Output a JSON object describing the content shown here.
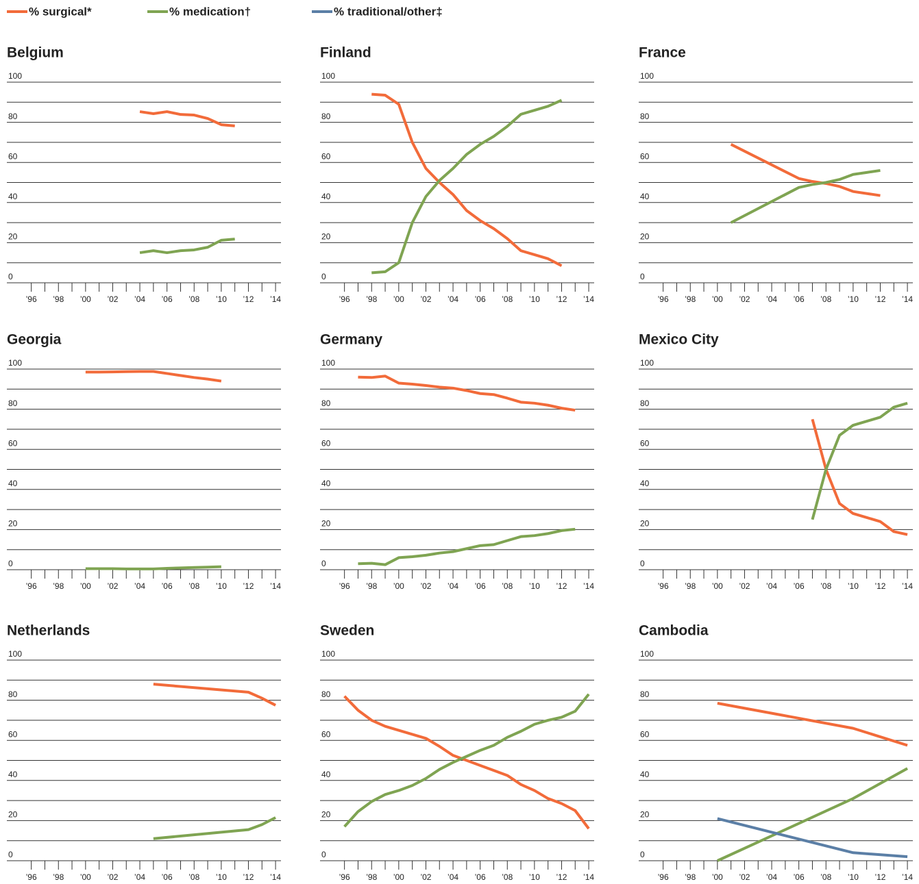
{
  "chart_data": [
    {
      "type": "line",
      "title": "Belgium",
      "x": [
        2004,
        2005,
        2006,
        2007,
        2008,
        2009,
        2010,
        2011
      ],
      "series": [
        {
          "name": "% surgical*",
          "color": "#f26b3a",
          "values": [
            85.3,
            84.3,
            85.3,
            83.9,
            83.6,
            81.9,
            78.8,
            78.2
          ]
        },
        {
          "name": "% medication†",
          "color": "#7fa452",
          "values": [
            15,
            16,
            15,
            16,
            16.4,
            17.7,
            21.2,
            21.8
          ]
        }
      ],
      "xlim": [
        1994.2,
        2014.4
      ],
      "ylim": [
        0,
        100
      ],
      "xticks": [
        {
          "value": 1996,
          "label": "’96"
        },
        {
          "value": 1998,
          "label": "’98"
        },
        {
          "value": 2000,
          "label": "’00"
        },
        {
          "value": 2002,
          "label": "’02"
        },
        {
          "value": 2004,
          "label": "’04"
        },
        {
          "value": 2006,
          "label": "’06"
        },
        {
          "value": 2008,
          "label": "’08"
        },
        {
          "value": 2010,
          "label": "’10"
        },
        {
          "value": 2012,
          "label": "’12"
        },
        {
          "value": 2014,
          "label": "’14"
        }
      ],
      "xminorticks": [
        1997,
        1999,
        2001,
        2003,
        2005,
        2007,
        2009,
        2011,
        2013
      ],
      "yticks": [
        0,
        20,
        40,
        60,
        80,
        100
      ],
      "yminorticks": [
        10,
        30,
        50,
        70,
        90
      ],
      "grid": true
    },
    {
      "type": "line",
      "title": "Finland",
      "x": [
        1998,
        1999,
        2000,
        2001,
        2002,
        2003,
        2004,
        2005,
        2006,
        2007,
        2008,
        2009,
        2010,
        2011,
        2012
      ],
      "series": [
        {
          "name": "% surgical*",
          "color": "#f26b3a",
          "values": [
            94,
            93.5,
            89,
            70,
            57,
            50,
            44,
            36,
            31,
            27,
            22,
            16,
            14,
            12,
            8.5
          ]
        },
        {
          "name": "% medication†",
          "color": "#7fa452",
          "values": [
            5,
            5.5,
            10,
            30,
            43,
            51,
            57,
            64,
            69,
            73,
            78,
            84,
            86,
            88,
            91
          ]
        }
      ],
      "xlim": [
        1994.2,
        2014.4
      ],
      "ylim": [
        0,
        100
      ],
      "xticks": [
        {
          "value": 1996,
          "label": "’96"
        },
        {
          "value": 1998,
          "label": "’98"
        },
        {
          "value": 2000,
          "label": "’00"
        },
        {
          "value": 2002,
          "label": "’02"
        },
        {
          "value": 2004,
          "label": "’04"
        },
        {
          "value": 2006,
          "label": "’06"
        },
        {
          "value": 2008,
          "label": "’08"
        },
        {
          "value": 2010,
          "label": "’10"
        },
        {
          "value": 2012,
          "label": "’12"
        },
        {
          "value": 2014,
          "label": "’14"
        }
      ],
      "xminorticks": [
        1997,
        1999,
        2001,
        2003,
        2005,
        2007,
        2009,
        2011,
        2013
      ],
      "yticks": [
        0,
        20,
        40,
        60,
        80,
        100
      ],
      "yminorticks": [
        10,
        30,
        50,
        70,
        90
      ],
      "grid": true
    },
    {
      "type": "line",
      "title": "France",
      "x": [
        2001,
        2006,
        2007,
        2008,
        2009,
        2010,
        2011,
        2012
      ],
      "series": [
        {
          "name": "% surgical*",
          "color": "#f26b3a",
          "values": [
            69,
            52,
            50.5,
            49.5,
            48,
            45.5,
            44.5,
            43.5
          ]
        },
        {
          "name": "% medication†",
          "color": "#7fa452",
          "values": [
            30,
            47.5,
            49,
            50,
            51.5,
            54,
            55,
            56
          ]
        }
      ],
      "xlim": [
        1994.2,
        2014.4
      ],
      "ylim": [
        0,
        100
      ],
      "xticks": [
        {
          "value": 1996,
          "label": "’96"
        },
        {
          "value": 1998,
          "label": "’98"
        },
        {
          "value": 2000,
          "label": "’00"
        },
        {
          "value": 2002,
          "label": "’02"
        },
        {
          "value": 2004,
          "label": "’04"
        },
        {
          "value": 2006,
          "label": "’06"
        },
        {
          "value": 2008,
          "label": "’08"
        },
        {
          "value": 2010,
          "label": "’10"
        },
        {
          "value": 2012,
          "label": "’12"
        },
        {
          "value": 2014,
          "label": "’14"
        }
      ],
      "xminorticks": [
        1997,
        1999,
        2001,
        2003,
        2005,
        2007,
        2009,
        2011,
        2013
      ],
      "yticks": [
        0,
        20,
        40,
        60,
        80,
        100
      ],
      "yminorticks": [
        10,
        30,
        50,
        70,
        90
      ],
      "grid": true
    },
    {
      "type": "line",
      "title": "Georgia",
      "x": [
        2000,
        2001,
        2002,
        2003,
        2004,
        2005,
        2006,
        2007,
        2008,
        2009,
        2010
      ],
      "series": [
        {
          "name": "% surgical*",
          "color": "#f26b3a",
          "values": [
            98.5,
            98.5,
            98.6,
            98.7,
            98.8,
            98.8,
            97.8,
            96.8,
            95.8,
            95,
            94
          ]
        },
        {
          "name": "% medication†",
          "color": "#7fa452",
          "values": [
            0.5,
            0.5,
            0.5,
            0.4,
            0.4,
            0.4,
            0.7,
            0.9,
            1.1,
            1.3,
            1.5
          ]
        }
      ],
      "xlim": [
        1994.2,
        2014.4
      ],
      "ylim": [
        0,
        100
      ],
      "xticks": [
        {
          "value": 1996,
          "label": "’96"
        },
        {
          "value": 1998,
          "label": "’98"
        },
        {
          "value": 2000,
          "label": "’00"
        },
        {
          "value": 2002,
          "label": "’02"
        },
        {
          "value": 2004,
          "label": "’04"
        },
        {
          "value": 2006,
          "label": "’06"
        },
        {
          "value": 2008,
          "label": "’08"
        },
        {
          "value": 2010,
          "label": "’10"
        },
        {
          "value": 2012,
          "label": "’12"
        },
        {
          "value": 2014,
          "label": "’14"
        }
      ],
      "xminorticks": [
        1997,
        1999,
        2001,
        2003,
        2005,
        2007,
        2009,
        2011,
        2013
      ],
      "yticks": [
        0,
        20,
        40,
        60,
        80,
        100
      ],
      "yminorticks": [
        10,
        30,
        50,
        70,
        90
      ],
      "grid": true
    },
    {
      "type": "line",
      "title": "Germany",
      "x": [
        1997,
        1998,
        1999,
        2000,
        2001,
        2002,
        2003,
        2004,
        2005,
        2006,
        2007,
        2008,
        2009,
        2010,
        2011,
        2012,
        2013
      ],
      "series": [
        {
          "name": "% surgical*",
          "color": "#f26b3a",
          "values": [
            96,
            95.8,
            96.5,
            93,
            92.5,
            91.8,
            91,
            90.5,
            89.3,
            87.8,
            87.3,
            85.5,
            83.5,
            83,
            82,
            80.5,
            79.5
          ]
        },
        {
          "name": "% medication†",
          "color": "#7fa452",
          "values": [
            3,
            3.2,
            2.5,
            6,
            6.5,
            7.2,
            8.3,
            9,
            10.5,
            12,
            12.5,
            14.5,
            16.5,
            17,
            18,
            19.5,
            20.2
          ]
        }
      ],
      "xlim": [
        1994.2,
        2014.4
      ],
      "ylim": [
        0,
        100
      ],
      "xticks": [
        {
          "value": 1996,
          "label": "’96"
        },
        {
          "value": 1998,
          "label": "’98"
        },
        {
          "value": 2000,
          "label": "’00"
        },
        {
          "value": 2002,
          "label": "’02"
        },
        {
          "value": 2004,
          "label": "’04"
        },
        {
          "value": 2006,
          "label": "’06"
        },
        {
          "value": 2008,
          "label": "’08"
        },
        {
          "value": 2010,
          "label": "’10"
        },
        {
          "value": 2012,
          "label": "’12"
        },
        {
          "value": 2014,
          "label": "’14"
        }
      ],
      "xminorticks": [
        1997,
        1999,
        2001,
        2003,
        2005,
        2007,
        2009,
        2011,
        2013
      ],
      "yticks": [
        0,
        20,
        40,
        60,
        80,
        100
      ],
      "yminorticks": [
        10,
        30,
        50,
        70,
        90
      ],
      "grid": true
    },
    {
      "type": "line",
      "title": "Mexico City",
      "x": [
        2007,
        2008,
        2009,
        2010,
        2011,
        2012,
        2013,
        2014
      ],
      "series": [
        {
          "name": "% surgical*",
          "color": "#f26b3a",
          "values": [
            75,
            50,
            33,
            28,
            26,
            24,
            19,
            17.5
          ]
        },
        {
          "name": "% medication†",
          "color": "#7fa452",
          "values": [
            25,
            50,
            67,
            72,
            74,
            76,
            81,
            83
          ]
        }
      ],
      "xlim": [
        1994.2,
        2014.4
      ],
      "ylim": [
        0,
        100
      ],
      "xticks": [
        {
          "value": 1996,
          "label": "’96"
        },
        {
          "value": 1998,
          "label": "’98"
        },
        {
          "value": 2000,
          "label": "’00"
        },
        {
          "value": 2002,
          "label": "’02"
        },
        {
          "value": 2004,
          "label": "’04"
        },
        {
          "value": 2006,
          "label": "’06"
        },
        {
          "value": 2008,
          "label": "’08"
        },
        {
          "value": 2010,
          "label": "’10"
        },
        {
          "value": 2012,
          "label": "’12"
        },
        {
          "value": 2014,
          "label": "’14"
        }
      ],
      "xminorticks": [
        1997,
        1999,
        2001,
        2003,
        2005,
        2007,
        2009,
        2011,
        2013
      ],
      "yticks": [
        0,
        20,
        40,
        60,
        80,
        100
      ],
      "yminorticks": [
        10,
        30,
        50,
        70,
        90
      ],
      "grid": true
    },
    {
      "type": "line",
      "title": "Netherlands",
      "x": [
        2005,
        2012,
        2013,
        2014
      ],
      "series": [
        {
          "name": "% surgical*",
          "color": "#f26b3a",
          "values": [
            88,
            84,
            81,
            77.5
          ]
        },
        {
          "name": "% medication†",
          "color": "#7fa452",
          "values": [
            11,
            15.5,
            18,
            21.5
          ]
        }
      ],
      "xlim": [
        1994.2,
        2014.4
      ],
      "ylim": [
        0,
        100
      ],
      "xticks": [
        {
          "value": 1996,
          "label": "’96"
        },
        {
          "value": 1998,
          "label": "’98"
        },
        {
          "value": 2000,
          "label": "’00"
        },
        {
          "value": 2002,
          "label": "’02"
        },
        {
          "value": 2004,
          "label": "’04"
        },
        {
          "value": 2006,
          "label": "’06"
        },
        {
          "value": 2008,
          "label": "’08"
        },
        {
          "value": 2010,
          "label": "’10"
        },
        {
          "value": 2012,
          "label": "’12"
        },
        {
          "value": 2014,
          "label": "’14"
        }
      ],
      "xminorticks": [
        1997,
        1999,
        2001,
        2003,
        2005,
        2007,
        2009,
        2011,
        2013
      ],
      "yticks": [
        0,
        20,
        40,
        60,
        80,
        100
      ],
      "yminorticks": [
        10,
        30,
        50,
        70,
        90
      ],
      "grid": true
    },
    {
      "type": "line",
      "title": "Sweden",
      "x": [
        1996,
        1997,
        1998,
        1999,
        2000,
        2001,
        2002,
        2003,
        2004,
        2005,
        2006,
        2007,
        2008,
        2009,
        2010,
        2011,
        2012,
        2013,
        2014
      ],
      "series": [
        {
          "name": "% surgical*",
          "color": "#f26b3a",
          "values": [
            82,
            75,
            70,
            67,
            65,
            63,
            61,
            57,
            52.5,
            50,
            47.5,
            45,
            42.5,
            38,
            35,
            31,
            28.5,
            25,
            16
          ]
        },
        {
          "name": "% medication†",
          "color": "#7fa452",
          "values": [
            17,
            24.5,
            29.5,
            33,
            35,
            37.5,
            41,
            45.5,
            49,
            52,
            55,
            57.5,
            61.5,
            64.5,
            68,
            70,
            71.5,
            74.5,
            83
          ]
        }
      ],
      "xlim": [
        1994.2,
        2014.4
      ],
      "ylim": [
        0,
        100
      ],
      "xticks": [
        {
          "value": 1996,
          "label": "’96"
        },
        {
          "value": 1998,
          "label": "’98"
        },
        {
          "value": 2000,
          "label": "’00"
        },
        {
          "value": 2002,
          "label": "’02"
        },
        {
          "value": 2004,
          "label": "’04"
        },
        {
          "value": 2006,
          "label": "’06"
        },
        {
          "value": 2008,
          "label": "’08"
        },
        {
          "value": 2010,
          "label": "’10"
        },
        {
          "value": 2012,
          "label": "’12"
        },
        {
          "value": 2014,
          "label": "’14"
        }
      ],
      "xminorticks": [
        1997,
        1999,
        2001,
        2003,
        2005,
        2007,
        2009,
        2011,
        2013
      ],
      "yticks": [
        0,
        20,
        40,
        60,
        80,
        100
      ],
      "yminorticks": [
        10,
        30,
        50,
        70,
        90
      ],
      "grid": true
    },
    {
      "type": "line",
      "title": "Cambodia",
      "x": [
        2000,
        2010,
        2014
      ],
      "series": [
        {
          "name": "% surgical*",
          "color": "#f26b3a",
          "values": [
            78.5,
            66,
            57.5
          ]
        },
        {
          "name": "% medication†",
          "color": "#7fa452",
          "values": [
            0,
            31,
            46
          ]
        },
        {
          "name": "% traditional/other‡",
          "color": "#5b7fa6",
          "values": [
            21,
            4,
            2
          ]
        }
      ],
      "xlim": [
        1994.2,
        2014.4
      ],
      "ylim": [
        0,
        100
      ],
      "xticks": [
        {
          "value": 1996,
          "label": "’96"
        },
        {
          "value": 1998,
          "label": "’98"
        },
        {
          "value": 2000,
          "label": "’00"
        },
        {
          "value": 2002,
          "label": "’02"
        },
        {
          "value": 2004,
          "label": "’04"
        },
        {
          "value": 2006,
          "label": "’06"
        },
        {
          "value": 2008,
          "label": "’08"
        },
        {
          "value": 2010,
          "label": "’10"
        },
        {
          "value": 2012,
          "label": "’12"
        },
        {
          "value": 2014,
          "label": "’14"
        }
      ],
      "xminorticks": [
        1997,
        1999,
        2001,
        2003,
        2005,
        2007,
        2009,
        2011,
        2013
      ],
      "yticks": [
        0,
        20,
        40,
        60,
        80,
        100
      ],
      "yminorticks": [
        10,
        30,
        50,
        70,
        90
      ],
      "grid": true
    }
  ]
}
